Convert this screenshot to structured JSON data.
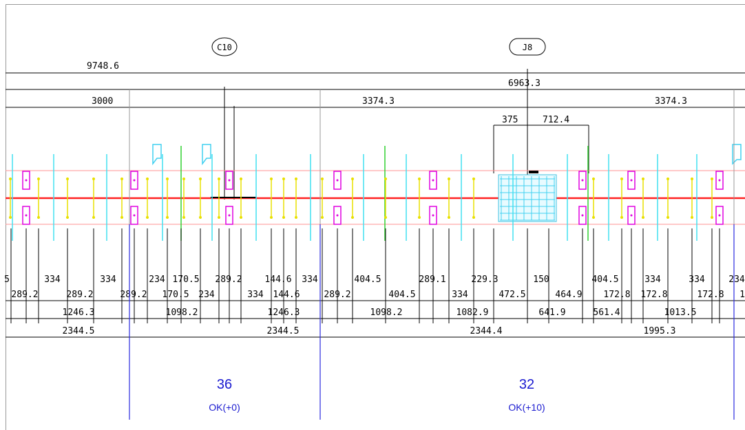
{
  "grid_labels": {
    "c10": "C10",
    "j8": "J8"
  },
  "overall": {
    "total": "9748.6",
    "sub": "6963.3"
  },
  "spans": {
    "s1": "3000",
    "s2": "3374.3",
    "s3": "3374.3"
  },
  "opening": {
    "left": "375",
    "right": "712.4"
  },
  "row1": [
    "5",
    "334",
    "334",
    "234",
    "170.5",
    "289.2",
    "144.6",
    "334",
    "404.5",
    "289.1",
    "229.3",
    "150",
    "404.5",
    "334",
    "334",
    "234"
  ],
  "row2": [
    "289.2",
    "289.2",
    "289.2",
    "170.5",
    "234",
    "334",
    "144.6",
    "289.2",
    "404.5",
    "334",
    "472.5",
    "464.9",
    "172.8",
    "172.8",
    "172.8",
    "1"
  ],
  "row3": [
    "1246.3",
    "1098.2",
    "1246.3",
    "1098.2",
    "1082.9",
    "641.9",
    "561.4",
    "1013.5"
  ],
  "row4": [
    "2344.5",
    "2344.5",
    "2344.4",
    "1995.3"
  ],
  "bays": [
    {
      "count": "36",
      "status": "OK(+0)"
    },
    {
      "count": "32",
      "status": "OK(+10)"
    }
  ],
  "colors": {
    "dimension": "#000000",
    "rail": "#ff7070",
    "rail_center": "#ff2020",
    "anchor": "#e000e0",
    "yellow": "#ffff00",
    "cyan": "#40e0f0",
    "green": "#30d030",
    "column": "#2a2ae0",
    "status": "#1a1ad0"
  }
}
